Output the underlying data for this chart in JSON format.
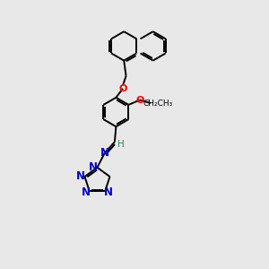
{
  "bg_color": "#e8e8e8",
  "bond_color": "#000000",
  "N_color": "#0000cd",
  "O_color": "#ff0000",
  "H_color": "#2e8b57",
  "bond_lw": 1.4,
  "dbo": 0.065,
  "ring_r": 0.55,
  "figsize": [
    3.0,
    3.0
  ],
  "dpi": 100,
  "xlim": [
    0,
    10
  ],
  "ylim": [
    0,
    10
  ]
}
